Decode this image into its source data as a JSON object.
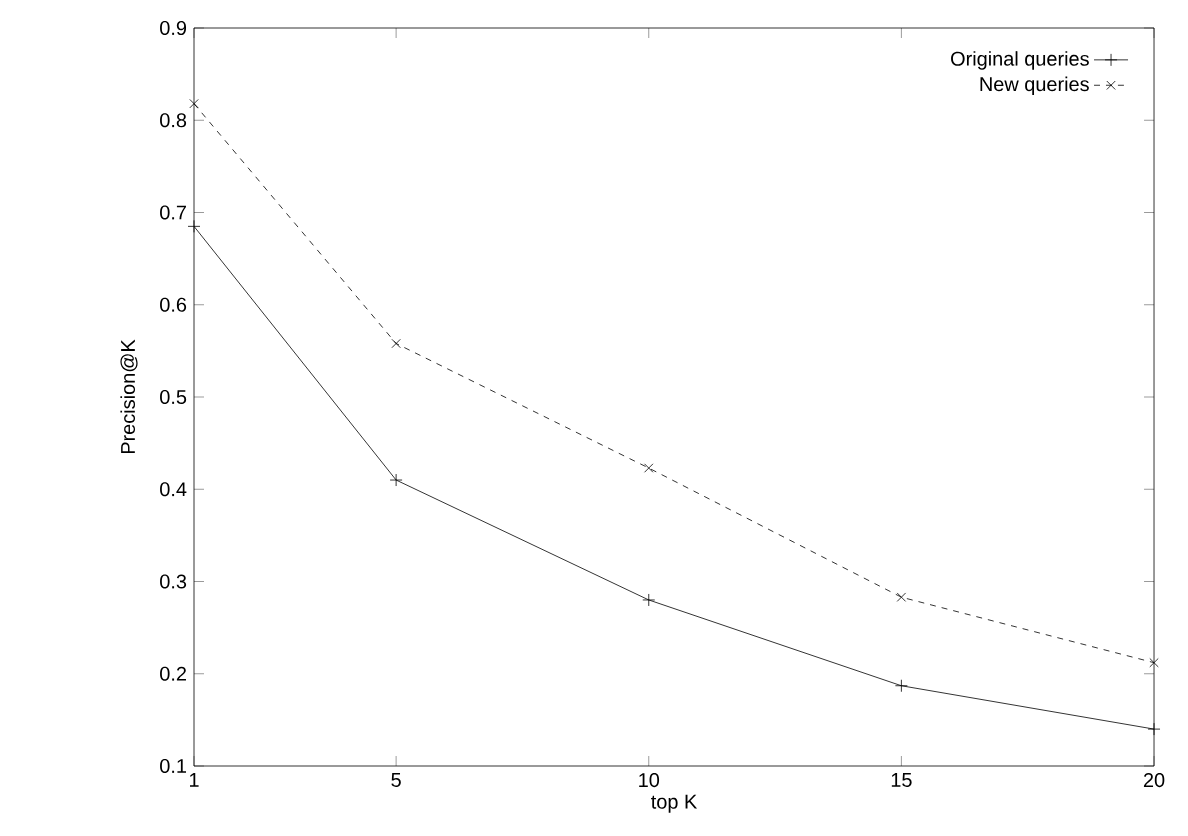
{
  "chart_data": {
    "type": "line",
    "xlabel": "top K",
    "ylabel": "Precision@K",
    "x": [
      1,
      5,
      10,
      15,
      20
    ],
    "xlim": [
      1,
      20
    ],
    "xticks": [
      1,
      5,
      10,
      15,
      20
    ],
    "ylim": [
      0.1,
      0.9
    ],
    "yticks": [
      0.1,
      0.2,
      0.3,
      0.4,
      0.5,
      0.6,
      0.7,
      0.8,
      0.9
    ],
    "legend": "top right",
    "grid": false,
    "series": [
      {
        "name": "Original queries",
        "color": "#000000",
        "values": [
          0.685,
          0.41,
          0.28,
          0.187,
          0.14
        ],
        "marker": "plus",
        "line_style": "solid"
      },
      {
        "name": "New queries",
        "color": "#000000",
        "values": [
          0.818,
          0.558,
          0.423,
          0.283,
          0.212
        ],
        "marker": "cross",
        "line_style": "dashed"
      }
    ]
  }
}
